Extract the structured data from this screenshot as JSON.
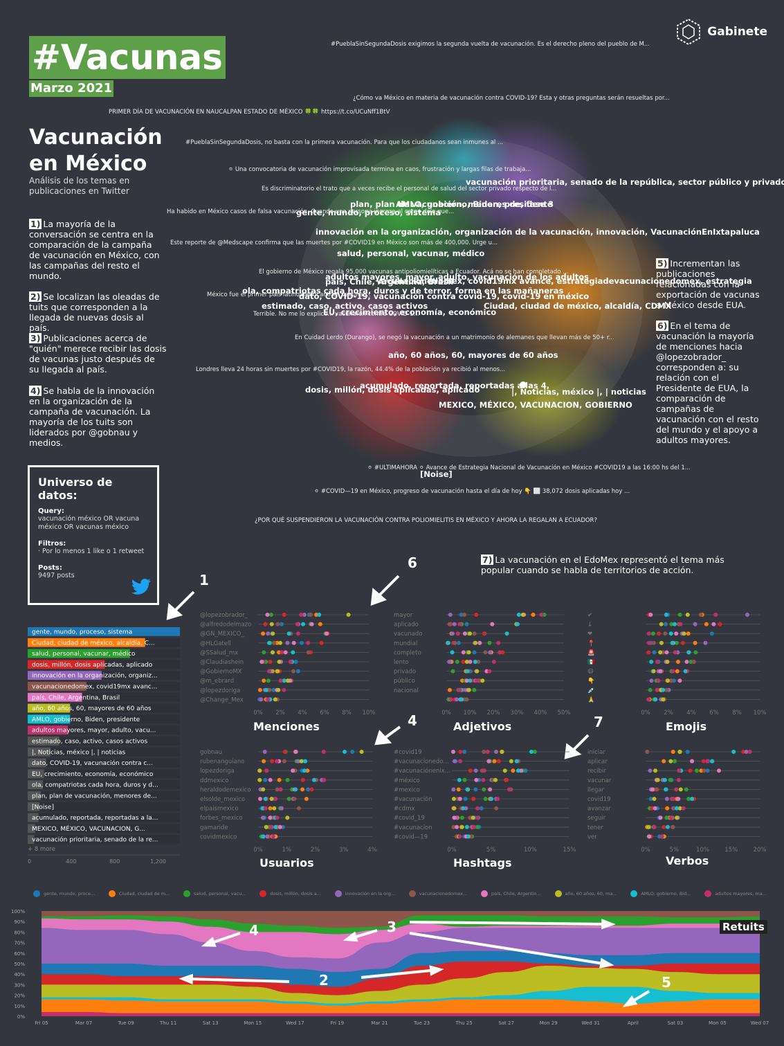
{
  "header": {
    "title": "#Vacunas",
    "subtitle": "Marzo 2021",
    "brand": "Gabinete"
  },
  "intro": {
    "section_title": "Vacunación en México",
    "description": "Análisis de los temas en publicaciones en Twitter"
  },
  "notes_left": [
    {
      "num": "1)",
      "text": "La mayoría de la conversación se centra en la comparación de la campaña de vacunación en México, con las campañas del resto el mundo."
    },
    {
      "num": "2)",
      "text": "Se localizan las oleadas de tuits que corresponden a la llegada de nuevas dosis al país."
    },
    {
      "num": "3)",
      "text": "Publicaciones acerca de \"quién\" merece recibir las dosis de vacunas justo después de su llegada al país."
    },
    {
      "num": "4)",
      "text": "Se habla de la innovación en la organización de la campaña de vacunación. La mayoría de los tuits son liderados por @gobnau y medios."
    }
  ],
  "notes_right": [
    {
      "num": "5)",
      "text": "Incrementan las publicaciones relacionadas con la exportación de vacunas a México desde EUA."
    },
    {
      "num": "6)",
      "text": "En el tema de vacunación la mayoría de menciones hacia @lopezobrador_ corresponden a: su relación con el Presidente de EUA, la comparación de campañas de vacunación con el resto del mundo y el apoyo a adultos mayores."
    }
  ],
  "note7": {
    "num": "7)",
    "text": "La vacunación en el EdoMex representó el tema más popular cuando se habla de territorios de acción."
  },
  "network": {
    "tweets": [
      "#PueblaSinSegundaDosis exigimos la segunda vuelta de vacunación. Es el derecho pleno del pueblo de M...",
      "¿Cómo va México en materia de vacunación contra COVID-19? Esta y otras preguntas serán resueltas por...",
      "PRIMER DÍA DE VACUNACIÓN EN NAUCALPAN ESTADO DE MÉXICO 🍀🍀  https://t.co/UCuNff1BtV",
      "#PueblaSinSegundaDosis, no basta con la primera vacunación. Para que los ciudadanos sean inmunes al ...",
      "⚪ Una convocatoria de vacunación improvisada termina en caos, frustración y largas filas de trabaja...",
      "Es discriminatorio el trato que a veces recibe el personal de salud del sector privado respecto de l...",
      "Ha habido en México casos de falsa vacunación. Cuando una persona ingresa al cargo dolo que...",
      "Este reporte de @Medscape confirma que las muertes por #COVID19 en México son más de 400,000. Urge u...",
      "El gobierno de México regala 95,000 vacunas antipoliomielíticas a Ecuador. Acá no se han completado ...",
      "México fue el primer país latinoamericano en vacunar...",
      "Terrible. No me lo explico... vacunaron contra COVID-1...",
      "En Cuidad Lerdo (Durango), se negó la vacunación a un matrimonio de alemanes que llevan más de 50+ r...",
      "Londres lleva 24 horas sin muertes por #COVID19, la razón, 44.4% de la población ya recibió al menos...",
      "⚪ #ULTIMAHORA ⚪ Avance de Estrategia Nacional de Vacunación en México #COVID19 a las 16:00 hs del 1...",
      "⚪ #COVID—19 en México, progreso de vacunación hasta el día de hoy 👇 ⬜ 38,072 dosis aplicadas hoy ...",
      "¿POR QUÉ SUSPENDIERON LA VACUNACIÓN CONTRA POLIOMIELITIS EN MÉXICO Y AHORA LA REGALAN A ECUADOR?"
    ],
    "clusters": [
      "vacunación prioritaria, senado de la república, sector público y privado, Sena",
      "plan, plan de vacunación, menores de, fase 3",
      "AMLO, gobierno, Biden, presidente",
      "gente, mundo, proceso, sistema",
      "innovación en la organización, organización de la vacunación, innovación, VacunaciónEnIxtapaluca",
      "salud, personal, vacunar, médico",
      "adultos mayores, mayor, adulto, vacunación de los adultos",
      "país, Chile, Argentina, Brasil",
      "vacunacionedomex, covid19mx avance, estrategiadevacunacionedomex, estrategia",
      "ola, compatriotas cada hora, duros y de terror, forma en las mañaneras",
      "dato, COVID-19, vacunación contra covid-19, covid-19 en méxico",
      "estimado, caso, activo, casos activos",
      "Ciudad, ciudad de méxico, alcaldía, CDMX",
      "EU, crecimiento, economía, económico",
      "año, 60 años, 60, mayores de 60 años",
      "acumulado, reportada, reportadas a las 4,",
      "dosis, millón, dosis aplicadas, aplicado",
      "|, Noticias, méxico |, | noticias",
      "MEXICO, MÉXICO, VACUNACION, GOBIERNO",
      "[Noise]"
    ]
  },
  "universe": {
    "heading": "Universo de datos:",
    "query_label": "Query:",
    "query": "vacunación méxico OR vacuna méxico OR vacunas méxico",
    "filters_label": "Filtros:",
    "filters": "· Por lo menos 1 like o 1 retweet",
    "posts_label": "Posts:",
    "posts": "9497 posts"
  },
  "callouts": {
    "c1": "1",
    "c6": "6",
    "c4a": "4",
    "c7": "7",
    "c4": "4",
    "c3": "3",
    "c2": "2",
    "c5": "5"
  },
  "chart_data": [
    {
      "type": "bar",
      "orientation": "horizontal",
      "categories": [
        "gente, mundo, proceso, sistema",
        "Ciudad, ciudad de méxico, alcaldía, C...",
        "salud, personal, vacunar, médico",
        "dosis, millón, dosis aplicadas, aplicado",
        "innovación en la organización, organiz...",
        "vacunacionedomex, covid19mx avanc...",
        "país, Chile, Argentina, Brasil",
        "año, 60 años, 60, mayores de 60 años",
        "AMLO, gobierno, Biden, presidente",
        "adultos mayores, mayor, adulto, vacu...",
        "estimado, caso, activo, casos activos",
        "|, Noticias, méxico |, | noticias",
        "dato, COVID-19, vacunación contra c...",
        "EU, crecimiento, economía, económico",
        "ola, compatriotas cada hora, duros y d...",
        "plan, plan de vacunación, menores de...",
        "[Noise]",
        "acumulado, reportada, reportadas a la...",
        "MEXICO, MÉXICO, VACUNACION, G...",
        "vacunación prioritaria, senado de la re..."
      ],
      "values": [
        1400,
        1080,
        940,
        710,
        680,
        540,
        500,
        390,
        390,
        370,
        290,
        210,
        170,
        150,
        140,
        120,
        110,
        100,
        70,
        60
      ],
      "colors": [
        "#1f77b4",
        "#ff7f0e",
        "#2ca02c",
        "#d62728",
        "#9467bd",
        "#8c564b",
        "#e377c2",
        "#bcbd22",
        "#17becf",
        "#c0306a",
        "#555",
        "#555",
        "#555",
        "#555",
        "#555",
        "#555",
        "#555",
        "#555",
        "#555",
        "#555"
      ],
      "more": "+ 8 more",
      "x_ticks": [
        "0",
        "400",
        "800",
        "1,200"
      ],
      "xlim": [
        0,
        1400
      ]
    },
    {
      "type": "scatter",
      "title": "Menciones",
      "rows": [
        "@lopezobrador_",
        "@alfredodelmazo",
        "@GN_MEXICO_",
        "@HLGatell",
        "@SSalud_mx",
        "@Claudiashein",
        "@GobiernoMX",
        "@m_ebrard",
        "@lopezdoriga",
        "@Change_Mex"
      ],
      "x_ticks": [
        "0%",
        "2%",
        "4%",
        "6%",
        "8%",
        "10%"
      ],
      "xlim": [
        0,
        10
      ]
    },
    {
      "type": "scatter",
      "title": "Adjetivos",
      "rows": [
        "mayor",
        "aplicado",
        "vacunado",
        "mundial",
        "completo",
        "lento",
        "privado",
        "público",
        "nacional",
        ""
      ],
      "x_ticks": [
        "0%",
        "10%",
        "20%",
        "30%",
        "40%",
        "50%"
      ],
      "xlim": [
        0,
        50
      ]
    },
    {
      "type": "scatter",
      "title": "Emojis",
      "rows": [
        "✔",
        "↓",
        "❤",
        "📍",
        "🚨",
        "🇲🇽",
        "😷",
        "👇",
        "💉",
        "🙏"
      ],
      "x_ticks": [
        "0%",
        "2%",
        "4%",
        "6%",
        "8%",
        "10%"
      ],
      "xlim": [
        0,
        10
      ]
    },
    {
      "type": "scatter",
      "title": "Usuarios",
      "rows": [
        "gobnau",
        "rubenanguiano",
        "lopezdoriga",
        "ddmexico",
        "heraldodemexico",
        "elsolde_mexico",
        "elpaismexico",
        "forbes_mexico",
        "gamaride",
        "covidmexico"
      ],
      "x_ticks": [
        "0%",
        "1%",
        "2%",
        "3%",
        "4%"
      ],
      "xlim": [
        0,
        4.5
      ]
    },
    {
      "type": "scatter",
      "title": "Hashtags",
      "rows": [
        "#covid19",
        "#vacunacionedo...",
        "#vacunaciónenix...",
        "#méxico",
        "#mexico",
        "#vacunación",
        "#cdmx",
        "#covid_19",
        "#vacunacion",
        "#covid—19"
      ],
      "x_ticks": [
        "0%",
        "5%",
        "10%",
        "15%"
      ],
      "xlim": [
        0,
        18
      ]
    },
    {
      "type": "scatter",
      "title": "Verbos",
      "rows": [
        "iniciar",
        "aplicar",
        "recibir",
        "vacunar",
        "llegar",
        "covid19",
        "avanzar",
        "seguir",
        "tener",
        "ver"
      ],
      "x_ticks": [
        "0%",
        "5%",
        "10%",
        "15%",
        "20%"
      ],
      "xlim": [
        0,
        22
      ]
    },
    {
      "type": "area",
      "label": "Retuits",
      "legend": [
        "gente, mundo, proce...",
        "Ciudad, ciudad de m...",
        "salud, personal, vacu...",
        "dosis, millón, dosis a...",
        "innovación en la org...",
        "vacunacionedomex...",
        "país, Chile, Argentin...",
        "año, 60 años, 60, ma...",
        "AMLO, gobierno, Bid...",
        "adultos mayores, ma..."
      ],
      "x": [
        "Fri 05",
        "Mar 07",
        "Tue 09",
        "Thu 11",
        "Sat 13",
        "Mon 15",
        "Wed 17",
        "Fri 19",
        "Mar 21",
        "Tue 23",
        "Thu 25",
        "Sat 27",
        "Mon 29",
        "Wed 31",
        "April",
        "Sat 03",
        "Mon 05",
        "Wed 07"
      ],
      "y_ticks": [
        "100%",
        "90%",
        "80%",
        "70%",
        "60%",
        "50%",
        "40%",
        "30%",
        "20%",
        "10%",
        "0%"
      ],
      "ylim": [
        0,
        100
      ]
    }
  ],
  "colors": {
    "background": "#33363e",
    "accent_green": "#5ea04a"
  }
}
